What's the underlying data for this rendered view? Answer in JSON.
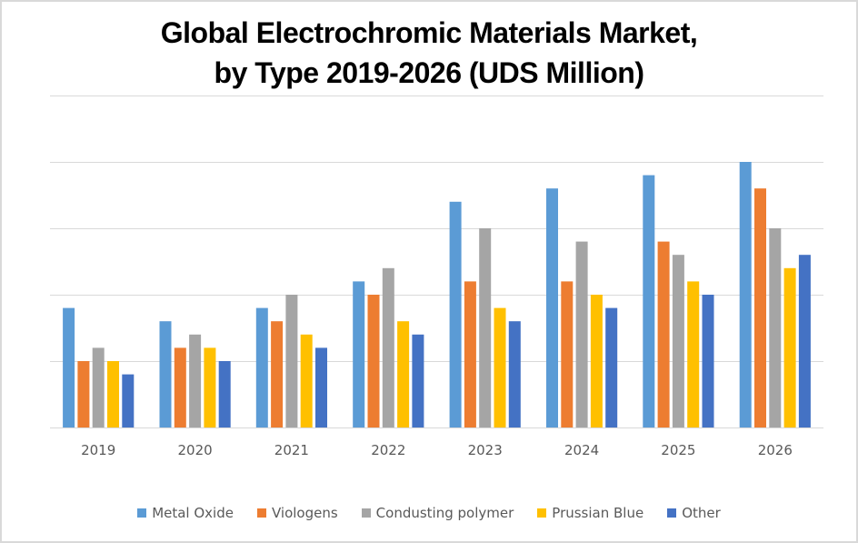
{
  "chart_data": {
    "type": "bar",
    "title": "Global Electrochromic Materials Market, by Type 2019-2026 (UDS Million)",
    "title_lines": [
      "Global Electrochromic Materials Market,",
      "by Type 2019-2026 (UDS Million)"
    ],
    "xlabel": "",
    "ylabel": "",
    "ylim": [
      0,
      5
    ],
    "y_ticks_labeled": false,
    "grid": true,
    "legend_position": "bottom",
    "categories": [
      "2019",
      "2020",
      "2021",
      "2022",
      "2023",
      "2024",
      "2025",
      "2026"
    ],
    "series": [
      {
        "name": "Metal Oxide",
        "color": "#5b9bd5",
        "values": [
          1.8,
          1.6,
          1.8,
          2.2,
          3.4,
          3.6,
          3.8,
          4.0
        ]
      },
      {
        "name": "Viologens",
        "color": "#ed7d31",
        "values": [
          1.0,
          1.2,
          1.6,
          2.0,
          2.2,
          2.2,
          2.8,
          3.6
        ]
      },
      {
        "name": "Condusting polymer",
        "color": "#a5a5a5",
        "values": [
          1.2,
          1.4,
          2.0,
          2.4,
          3.0,
          2.8,
          2.6,
          3.0
        ]
      },
      {
        "name": "Prussian Blue",
        "color": "#ffc000",
        "values": [
          1.0,
          1.2,
          1.4,
          1.6,
          1.8,
          2.0,
          2.2,
          2.4
        ]
      },
      {
        "name": "Other",
        "color": "#4472c4",
        "values": [
          0.8,
          1.0,
          1.2,
          1.4,
          1.6,
          1.8,
          2.0,
          2.6
        ]
      }
    ]
  }
}
